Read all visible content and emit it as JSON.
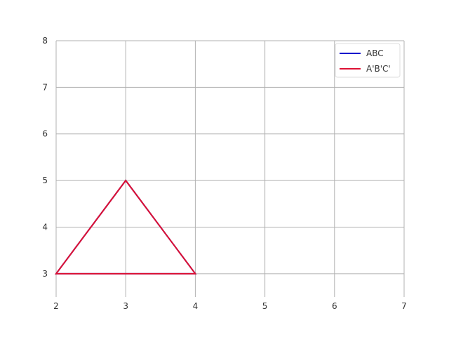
{
  "chart_data": {
    "type": "line",
    "title": "",
    "xlabel": "",
    "ylabel": "",
    "xlim": [
      2,
      7
    ],
    "ylim": [
      2.5,
      8
    ],
    "x_ticks": [
      "2",
      "3",
      "4",
      "5",
      "6",
      "7"
    ],
    "y_ticks": [
      "3",
      "4",
      "5",
      "6",
      "7",
      "8"
    ],
    "grid": true,
    "legend_position": "top-right",
    "series": [
      {
        "name": "ABC",
        "color": "#1010cc",
        "closed": true,
        "points": [
          [
            2,
            3
          ],
          [
            4,
            3
          ],
          [
            3,
            5
          ]
        ]
      },
      {
        "name": "A'B'C'",
        "color": "#dd1133",
        "closed": true,
        "points": [
          [
            2,
            3
          ],
          [
            4,
            3
          ],
          [
            3,
            5
          ]
        ]
      }
    ]
  }
}
